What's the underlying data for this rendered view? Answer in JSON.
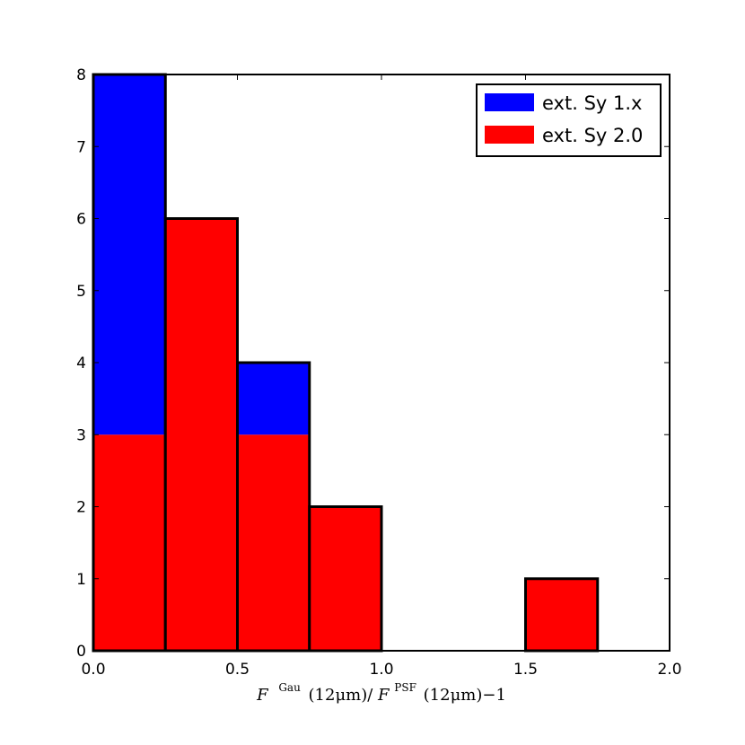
{
  "chart_data": {
    "type": "bar",
    "stacked": true,
    "bin_edges": [
      0.0,
      0.25,
      0.5,
      0.75,
      1.0,
      1.25,
      1.5,
      1.75,
      2.0
    ],
    "series": [
      {
        "name": "ext. Sy 1.x",
        "color": "#0000ff",
        "values": [
          5,
          0,
          1,
          0,
          0,
          0,
          0,
          0
        ]
      },
      {
        "name": "ext. Sy 2.0",
        "color": "#ff0000",
        "values": [
          3,
          6,
          3,
          2,
          0,
          0,
          1,
          0
        ]
      }
    ],
    "xlim": [
      0.0,
      2.0
    ],
    "ylim": [
      0,
      8
    ],
    "x_ticks": [
      0.0,
      0.5,
      1.0,
      1.5,
      2.0
    ],
    "x_tick_labels": [
      "0.0",
      "0.5",
      "1.0",
      "1.5",
      "2.0"
    ],
    "y_ticks": [
      0,
      1,
      2,
      3,
      4,
      5,
      6,
      7,
      8
    ],
    "y_tick_labels": [
      "0",
      "1",
      "2",
      "3",
      "4",
      "5",
      "6",
      "7",
      "8"
    ],
    "xlabel": {
      "F1": "F",
      "sup1": "Gau",
      "arg1": "(12μm)/",
      "F2": "F",
      "sup2": "PSF",
      "arg2": "(12μm)−1"
    },
    "ylabel": "",
    "grid": false,
    "legend_position": "top-right"
  }
}
